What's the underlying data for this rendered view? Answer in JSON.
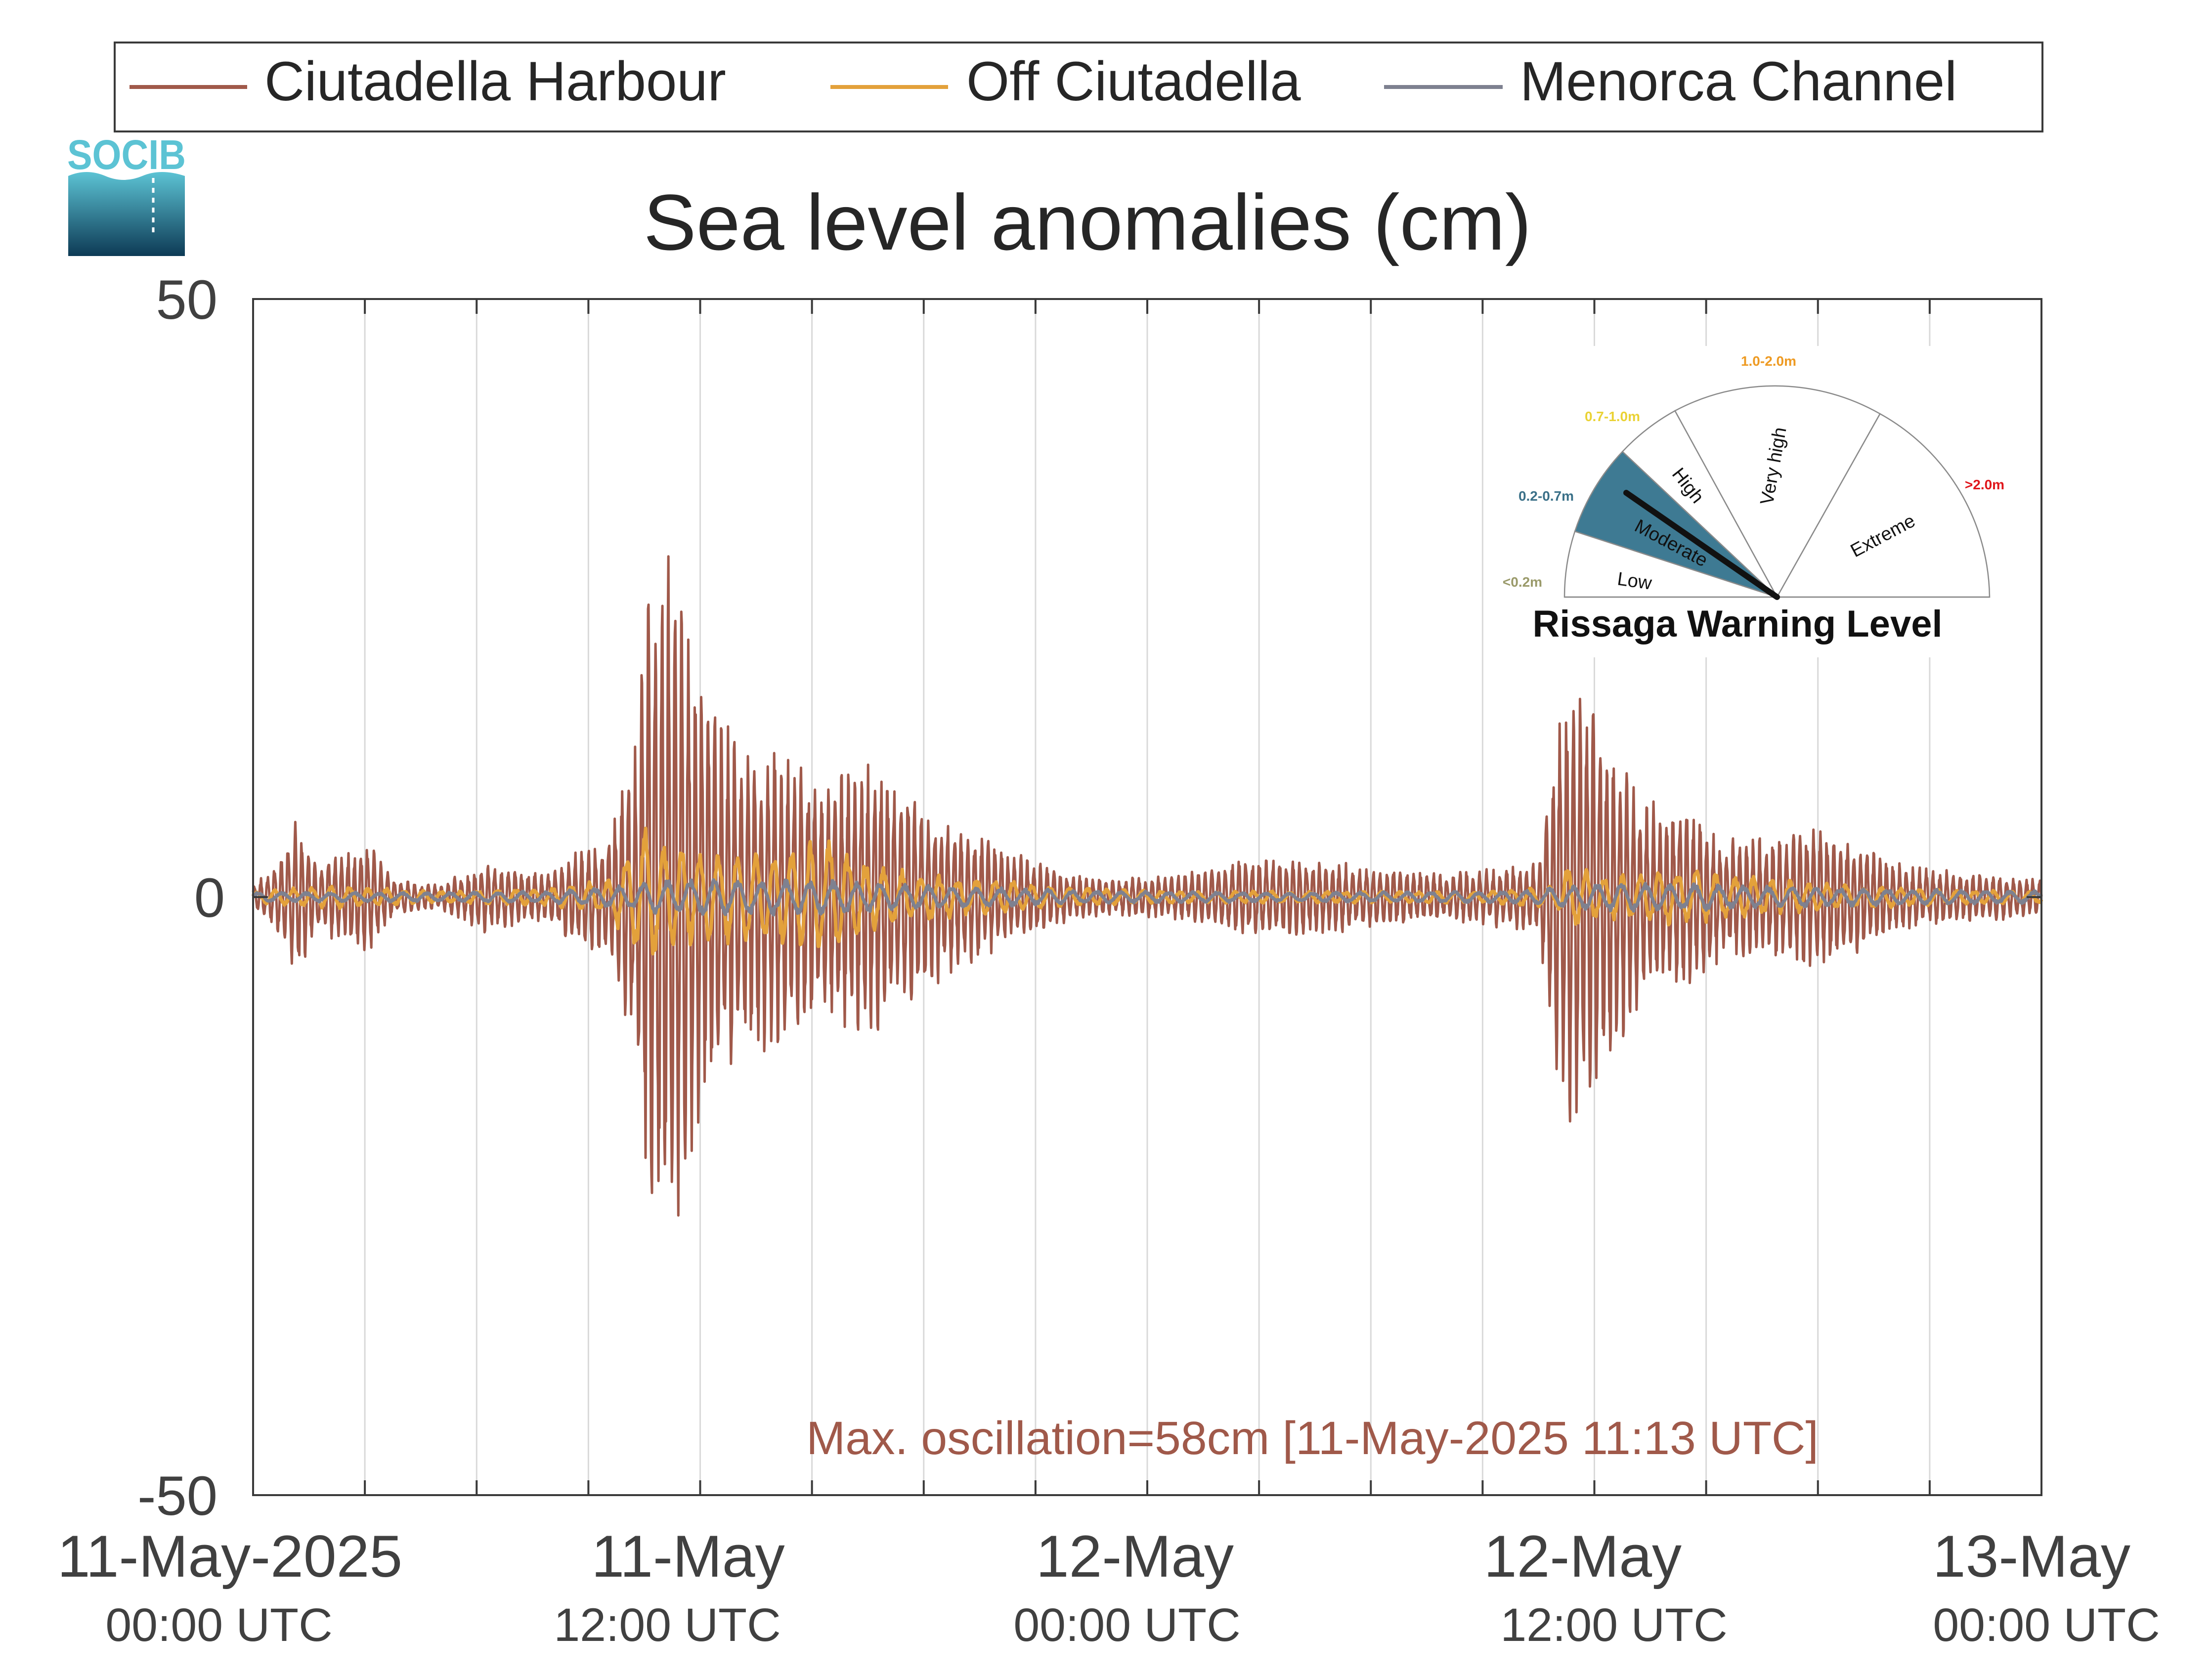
{
  "chart_data": {
    "type": "line",
    "title": "Sea level anomalies (cm)",
    "xlabel": "",
    "ylabel": "",
    "ylim": [
      -50,
      50
    ],
    "y_ticks": [
      50,
      0,
      -50
    ],
    "y_tick_labels": [
      "50",
      "0",
      "-50"
    ],
    "xlim_hours": [
      0,
      48
    ],
    "x_ticks": [
      {
        "hours": 0,
        "line1": "11-May-2025",
        "line2": "00:00 UTC"
      },
      {
        "hours": 12,
        "line1": "11-May",
        "line2": "12:00 UTC"
      },
      {
        "hours": 24,
        "line1": "12-May",
        "line2": "00:00 UTC"
      },
      {
        "hours": 36,
        "line1": "12-May",
        "line2": "12:00 UTC"
      },
      {
        "hours": 48,
        "line1": "13-May",
        "line2": "00:00 UTC"
      }
    ],
    "grid_hours": [
      3,
      6,
      9,
      12,
      15,
      18,
      21,
      24,
      27,
      30,
      33,
      36,
      39,
      42,
      45
    ],
    "grid": true,
    "legend_position": "top",
    "series": [
      {
        "name": "Ciutadella Harbour",
        "color": "#a0594a",
        "period_hours": 0.18,
        "envelope": [
          [
            0,
            1
          ],
          [
            0.6,
            3
          ],
          [
            1.2,
            7
          ],
          [
            1.7,
            3
          ],
          [
            2.3,
            4
          ],
          [
            3.1,
            5
          ],
          [
            3.8,
            1.5
          ],
          [
            5,
            1
          ],
          [
            6.2,
            3
          ],
          [
            7.8,
            2
          ],
          [
            8.6,
            4
          ],
          [
            9.5,
            5
          ],
          [
            10.3,
            14
          ],
          [
            10.6,
            28
          ],
          [
            11.2,
            30
          ],
          [
            11.8,
            22
          ],
          [
            12.3,
            16
          ],
          [
            13,
            14
          ],
          [
            14,
            13
          ],
          [
            15.3,
            10
          ],
          [
            16.5,
            12
          ],
          [
            17.5,
            10
          ],
          [
            18.5,
            7
          ],
          [
            19.8,
            5
          ],
          [
            21,
            3
          ],
          [
            22,
            2
          ],
          [
            23,
            1.5
          ],
          [
            25,
            2
          ],
          [
            27,
            3.5
          ],
          [
            29,
            3
          ],
          [
            32,
            2
          ],
          [
            34.5,
            3
          ],
          [
            35.2,
            20
          ],
          [
            35.8,
            18
          ],
          [
            36.6,
            13
          ],
          [
            37.5,
            8
          ],
          [
            38.5,
            8
          ],
          [
            39.5,
            5
          ],
          [
            40.5,
            5
          ],
          [
            41.5,
            6
          ],
          [
            42.5,
            6
          ],
          [
            44,
            3
          ],
          [
            46,
            2
          ],
          [
            47,
            2
          ],
          [
            48,
            1.5
          ]
        ],
        "bias": [
          [
            0,
            0
          ],
          [
            48,
            0
          ]
        ]
      },
      {
        "name": "Off Ciutadella",
        "color": "#e3a13b",
        "period_hours": 0.5,
        "envelope": [
          [
            0,
            0.5
          ],
          [
            2,
            1
          ],
          [
            5,
            0.5
          ],
          [
            8,
            0.8
          ],
          [
            9.5,
            1.5
          ],
          [
            10.5,
            6
          ],
          [
            11,
            5
          ],
          [
            12,
            4
          ],
          [
            13,
            4
          ],
          [
            14,
            4
          ],
          [
            15.5,
            5
          ],
          [
            16.5,
            3
          ],
          [
            18,
            2
          ],
          [
            20,
            1.5
          ],
          [
            22,
            0.8
          ],
          [
            25,
            0.5
          ],
          [
            28,
            0.5
          ],
          [
            33,
            0.5
          ],
          [
            35,
            1
          ],
          [
            35.3,
            3
          ],
          [
            36,
            2
          ],
          [
            37,
            2
          ],
          [
            38,
            2.5
          ],
          [
            39.5,
            2
          ],
          [
            41,
            1.5
          ],
          [
            43,
            1
          ],
          [
            46,
            0.6
          ],
          [
            48,
            0.5
          ]
        ],
        "bias": [
          [
            0,
            0
          ],
          [
            48,
            0
          ]
        ]
      },
      {
        "name": "Menorca Channel",
        "color": "#7e8190",
        "period_hours": 0.65,
        "envelope": [
          [
            0,
            0.4
          ],
          [
            5,
            0.4
          ],
          [
            8,
            0.5
          ],
          [
            10,
            1
          ],
          [
            11,
            1.5
          ],
          [
            12,
            1.5
          ],
          [
            14,
            1.5
          ],
          [
            16,
            1.4
          ],
          [
            18,
            1
          ],
          [
            20,
            0.8
          ],
          [
            23,
            0.5
          ],
          [
            28,
            0.4
          ],
          [
            34,
            0.5
          ],
          [
            36,
            1.2
          ],
          [
            38,
            1.2
          ],
          [
            40,
            1
          ],
          [
            42,
            0.8
          ],
          [
            48,
            0.5
          ]
        ],
        "bias": [
          [
            0,
            0
          ],
          [
            48,
            0
          ]
        ]
      }
    ],
    "annotation": "Max. oscillation=58cm [11-May-2025 11:13 UTC]",
    "annotation_color": "#a0594a"
  },
  "logo": {
    "text": "SOCIB",
    "color_light": "#5cc3d4",
    "color_dark": "#0d3a55"
  },
  "gauge": {
    "title": "Rissaga Warning Level",
    "current_level": "Moderate",
    "segments": [
      {
        "label": "Low",
        "range": "<0.2m",
        "range_color": "#9a9a6a",
        "fill": "#ffffff"
      },
      {
        "label": "Moderate",
        "range": "0.2-0.7m",
        "range_color": "#3a7088",
        "fill": "#3e7a93"
      },
      {
        "label": "High",
        "range": "0.7-1.0m",
        "range_color": "#ead234",
        "fill": "#ffffff"
      },
      {
        "label": "Very high",
        "range": "1.0-2.0m",
        "range_color": "#ee9a22",
        "fill": "#ffffff"
      },
      {
        "label": "Extreme",
        "range": ">2.0m",
        "range_color": "#e0161b",
        "fill": "#ffffff"
      }
    ]
  }
}
